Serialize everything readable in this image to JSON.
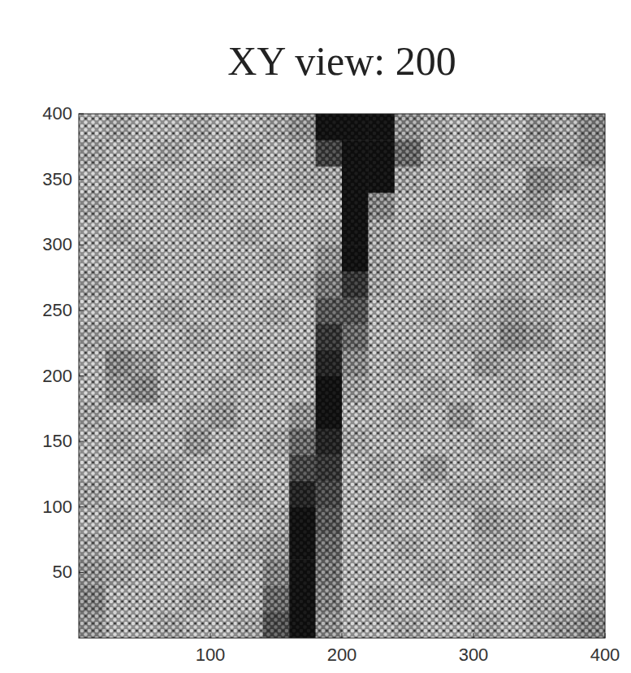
{
  "chart_data": {
    "type": "heatmap",
    "title": "XY view: 200",
    "xlim": [
      0,
      400
    ],
    "ylim": [
      0,
      400
    ],
    "xticks": [
      100,
      200,
      300,
      400
    ],
    "yticks": [
      50,
      100,
      150,
      200,
      250,
      300,
      350,
      400
    ],
    "zlim": [
      0,
      1
    ],
    "cells": [
      [
        0.45,
        0.55,
        0.55,
        0.5,
        0.55,
        0.55,
        0.5,
        0.23,
        0.05,
        0.43,
        0.55,
        0.55,
        0.5,
        0.55,
        0.55,
        0.5,
        0.55,
        0.5,
        0.45,
        0.4
      ],
      [
        0.4,
        0.55,
        0.55,
        0.55,
        0.5,
        0.55,
        0.55,
        0.3,
        0.05,
        0.38,
        0.55,
        0.5,
        0.55,
        0.55,
        0.5,
        0.55,
        0.55,
        0.5,
        0.5,
        0.45
      ],
      [
        0.45,
        0.5,
        0.55,
        0.55,
        0.55,
        0.5,
        0.55,
        0.38,
        0.05,
        0.35,
        0.55,
        0.55,
        0.55,
        0.5,
        0.55,
        0.5,
        0.55,
        0.55,
        0.5,
        0.5
      ],
      [
        0.5,
        0.55,
        0.5,
        0.55,
        0.55,
        0.55,
        0.5,
        0.45,
        0.05,
        0.3,
        0.55,
        0.55,
        0.5,
        0.55,
        0.55,
        0.5,
        0.5,
        0.55,
        0.55,
        0.5
      ],
      [
        0.55,
        0.5,
        0.55,
        0.55,
        0.5,
        0.55,
        0.55,
        0.5,
        0.05,
        0.25,
        0.55,
        0.5,
        0.55,
        0.55,
        0.55,
        0.45,
        0.5,
        0.55,
        0.5,
        0.55
      ],
      [
        0.5,
        0.55,
        0.55,
        0.5,
        0.55,
        0.55,
        0.5,
        0.55,
        0.1,
        0.2,
        0.55,
        0.55,
        0.5,
        0.55,
        0.5,
        0.5,
        0.55,
        0.55,
        0.55,
        0.5
      ],
      [
        0.55,
        0.55,
        0.5,
        0.5,
        0.55,
        0.55,
        0.55,
        0.55,
        0.2,
        0.15,
        0.55,
        0.5,
        0.55,
        0.45,
        0.55,
        0.55,
        0.5,
        0.5,
        0.55,
        0.55
      ],
      [
        0.55,
        0.5,
        0.55,
        0.55,
        0.45,
        0.55,
        0.55,
        0.5,
        0.3,
        0.1,
        0.5,
        0.55,
        0.55,
        0.55,
        0.55,
        0.5,
        0.55,
        0.55,
        0.5,
        0.55
      ],
      [
        0.5,
        0.55,
        0.55,
        0.55,
        0.5,
        0.45,
        0.55,
        0.55,
        0.43,
        0.05,
        0.55,
        0.55,
        0.5,
        0.55,
        0.45,
        0.55,
        0.55,
        0.5,
        0.55,
        0.5
      ],
      [
        0.55,
        0.45,
        0.4,
        0.55,
        0.55,
        0.5,
        0.55,
        0.55,
        0.55,
        0.05,
        0.48,
        0.55,
        0.55,
        0.5,
        0.55,
        0.55,
        0.5,
        0.55,
        0.55,
        0.55
      ],
      [
        0.55,
        0.4,
        0.45,
        0.55,
        0.55,
        0.55,
        0.5,
        0.55,
        0.5,
        0.1,
        0.4,
        0.55,
        0.5,
        0.55,
        0.55,
        0.45,
        0.5,
        0.55,
        0.5,
        0.55
      ],
      [
        0.5,
        0.5,
        0.55,
        0.55,
        0.5,
        0.55,
        0.55,
        0.55,
        0.55,
        0.15,
        0.3,
        0.55,
        0.55,
        0.55,
        0.5,
        0.5,
        0.4,
        0.45,
        0.55,
        0.5
      ],
      [
        0.55,
        0.55,
        0.55,
        0.5,
        0.55,
        0.55,
        0.55,
        0.5,
        0.55,
        0.25,
        0.23,
        0.55,
        0.55,
        0.5,
        0.55,
        0.5,
        0.45,
        0.5,
        0.55,
        0.55
      ],
      [
        0.5,
        0.55,
        0.55,
        0.55,
        0.55,
        0.5,
        0.55,
        0.55,
        0.5,
        0.35,
        0.15,
        0.5,
        0.55,
        0.55,
        0.55,
        0.55,
        0.5,
        0.55,
        0.5,
        0.5
      ],
      [
        0.55,
        0.55,
        0.5,
        0.55,
        0.55,
        0.55,
        0.55,
        0.5,
        0.55,
        0.43,
        0.05,
        0.5,
        0.55,
        0.55,
        0.5,
        0.55,
        0.55,
        0.5,
        0.55,
        0.55
      ],
      [
        0.55,
        0.5,
        0.55,
        0.55,
        0.55,
        0.55,
        0.5,
        0.55,
        0.55,
        0.5,
        0.05,
        0.5,
        0.55,
        0.5,
        0.55,
        0.5,
        0.55,
        0.55,
        0.5,
        0.55
      ],
      [
        0.5,
        0.55,
        0.55,
        0.55,
        0.5,
        0.55,
        0.55,
        0.55,
        0.55,
        0.55,
        0.05,
        0.4,
        0.55,
        0.55,
        0.55,
        0.55,
        0.5,
        0.45,
        0.55,
        0.5
      ],
      [
        0.55,
        0.55,
        0.5,
        0.55,
        0.55,
        0.5,
        0.55,
        0.55,
        0.5,
        0.5,
        0.05,
        0.05,
        0.5,
        0.55,
        0.55,
        0.5,
        0.55,
        0.4,
        0.45,
        0.5
      ],
      [
        0.5,
        0.55,
        0.55,
        0.5,
        0.55,
        0.55,
        0.5,
        0.55,
        0.5,
        0.18,
        0.05,
        0.05,
        0.3,
        0.5,
        0.55,
        0.55,
        0.5,
        0.5,
        0.5,
        0.4
      ],
      [
        0.55,
        0.5,
        0.55,
        0.55,
        0.5,
        0.55,
        0.55,
        0.5,
        0.43,
        0.05,
        0.05,
        0.05,
        0.43,
        0.5,
        0.55,
        0.5,
        0.55,
        0.45,
        0.5,
        0.4
      ]
    ]
  }
}
